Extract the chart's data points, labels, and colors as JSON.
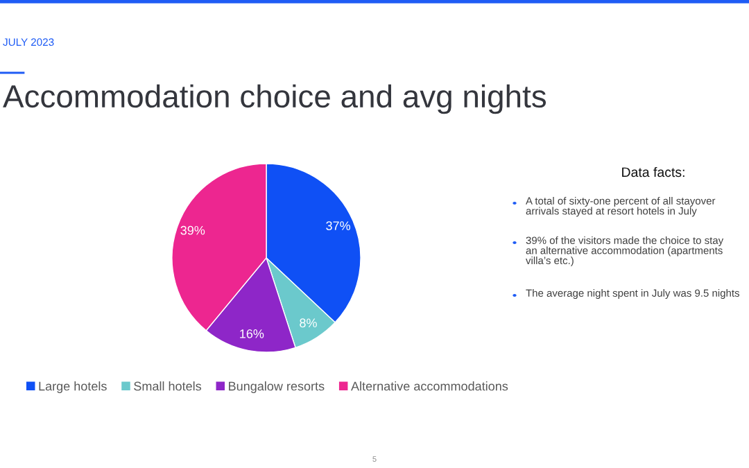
{
  "chart_data": {
    "type": "pie",
    "title": "Accommodation choice and avg nights",
    "subtitle": "JULY 2023",
    "categories": [
      "Large hotels",
      "Small hotels",
      "Bungalow resorts",
      "Alternative accommodations"
    ],
    "values": [
      37,
      8,
      16,
      39
    ],
    "colors": [
      "#0f50f5",
      "#6bc9cc",
      "#8e26c8",
      "#ed2690"
    ],
    "value_labels": [
      "37%",
      "8%",
      "16%",
      "39%"
    ],
    "legend": "bottom",
    "annotations": [
      "Data facts:",
      "A total of sixty-one percent of all stayover\narrivals stayed at resort hotels in July",
      "39% of the visitors made the choice to stay\nan alternative accommodation (apartments\nvilla’s etc.)",
      "The average night spent in July was 9.5 nights",
      "5"
    ]
  }
}
